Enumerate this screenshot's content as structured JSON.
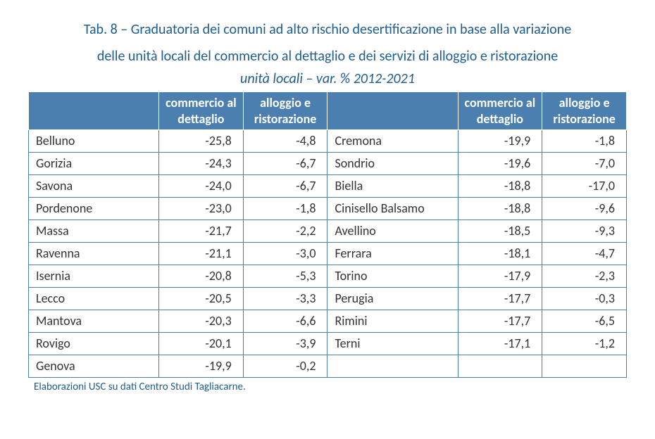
{
  "title_line1": "Tab. 8 – Graduatoria dei comuni ad alto rischio desertificazione in base alla variazione",
  "title_line2": "delle unità locali del commercio al dettaglio e dei servizi di alloggio e ristorazione",
  "subtitle": "unità locali – var. % 2012-2021",
  "header": {
    "col1": "commercio al dettaglio",
    "col2": "alloggio e ristorazione"
  },
  "rows": [
    {
      "cityL": "Belluno",
      "c1L": "-25,8",
      "c2L": "-4,8",
      "cityR": "Cremona",
      "c1R": "-19,9",
      "c2R": "-1,8"
    },
    {
      "cityL": "Gorizia",
      "c1L": "-24,3",
      "c2L": "-6,7",
      "cityR": "Sondrio",
      "c1R": "-19,6",
      "c2R": "-7,0"
    },
    {
      "cityL": "Savona",
      "c1L": "-24,0",
      "c2L": "-6,7",
      "cityR": "Biella",
      "c1R": "-18,8",
      "c2R": "-17,0"
    },
    {
      "cityL": "Pordenone",
      "c1L": "-23,0",
      "c2L": "-1,8",
      "cityR": "Cinisello Balsamo",
      "c1R": "-18,8",
      "c2R": "-9,6"
    },
    {
      "cityL": "Massa",
      "c1L": "-21,7",
      "c2L": "-2,2",
      "cityR": "Avellino",
      "c1R": "-18,5",
      "c2R": "-9,3"
    },
    {
      "cityL": "Ravenna",
      "c1L": "-21,1",
      "c2L": "-3,0",
      "cityR": "Ferrara",
      "c1R": "-18,1",
      "c2R": "-4,7"
    },
    {
      "cityL": "Isernia",
      "c1L": "-20,8",
      "c2L": "-5,3",
      "cityR": "Torino",
      "c1R": "-17,9",
      "c2R": "-2,3"
    },
    {
      "cityL": "Lecco",
      "c1L": "-20,5",
      "c2L": "-3,3",
      "cityR": "Perugia",
      "c1R": "-17,7",
      "c2R": "-0,3"
    },
    {
      "cityL": "Mantova",
      "c1L": "-20,3",
      "c2L": "-6,6",
      "cityR": "Rimini",
      "c1R": "-17,7",
      "c2R": "-6,5"
    },
    {
      "cityL": "Rovigo",
      "c1L": "-20,1",
      "c2L": "-3,9",
      "cityR": "Terni",
      "c1R": "-17,1",
      "c2R": "-1,2"
    },
    {
      "cityL": "Genova",
      "c1L": "-19,9",
      "c2L": "-0,2",
      "cityR": "",
      "c1R": "",
      "c2R": ""
    }
  ],
  "note": "Elaborazioni USC su dati Centro Studi Tagliacarne."
}
